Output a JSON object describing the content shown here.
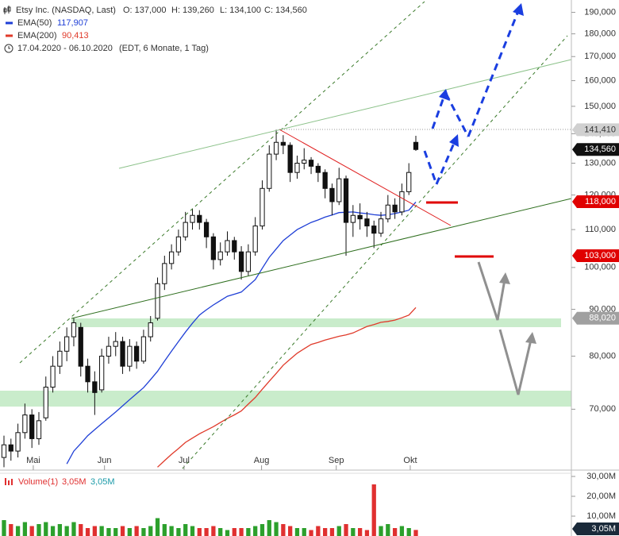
{
  "chart_data": [
    {
      "type": "candlestick",
      "log_scale": true,
      "title": "Etsy Inc. (NASDAQ, Last)",
      "quote_labels": [
        "O: 137,000",
        "H: 139,260",
        "L: 134,100",
        "C: 134,560"
      ],
      "date_range": "17.04.2020 - 06.10.2020",
      "period_note": "(EDT, 6 Monate, 1 Tag)",
      "open": [
        62000,
        64000,
        63000,
        66000,
        69000,
        65000,
        68500,
        74000,
        78000,
        81000,
        84000,
        86000,
        78000,
        75000,
        73500,
        80000,
        82000,
        83000,
        78000,
        82000,
        79000,
        84000,
        88000,
        96000,
        101000,
        104000,
        108000,
        112000,
        114000,
        112000,
        108000,
        102000,
        104000,
        107000,
        104000,
        99000,
        104000,
        111000,
        122000,
        133000,
        137000,
        136000,
        127000,
        130000,
        131000,
        129000,
        127000,
        122000,
        118000,
        125000,
        112000,
        114000,
        113000,
        111000,
        109000,
        113000,
        117000,
        115000,
        121000,
        137000
      ],
      "high": [
        65500,
        65000,
        67500,
        71000,
        70000,
        69500,
        76000,
        80000,
        83000,
        86000,
        88020,
        87000,
        79500,
        77000,
        81500,
        84000,
        85000,
        84000,
        83500,
        83000,
        85500,
        88500,
        97500,
        103000,
        106000,
        110000,
        115000,
        116000,
        115500,
        113000,
        109000,
        106500,
        109500,
        108000,
        105500,
        106000,
        113500,
        124500,
        136000,
        141410,
        139500,
        137000,
        132500,
        135000,
        132000,
        130000,
        128000,
        123500,
        128500,
        126000,
        117000,
        117500,
        115000,
        112500,
        115000,
        120000,
        119000,
        123500,
        130000,
        139260
      ],
      "low": [
        60500,
        61500,
        62000,
        65000,
        63500,
        64000,
        68000,
        73000,
        76500,
        79000,
        82000,
        76000,
        73000,
        69000,
        73000,
        78500,
        80000,
        76500,
        77000,
        77500,
        78500,
        83000,
        87500,
        94500,
        99500,
        103000,
        107000,
        110000,
        110000,
        105000,
        99500,
        100500,
        103000,
        102000,
        97000,
        98000,
        103000,
        110000,
        121000,
        131000,
        133000,
        124000,
        125000,
        128000,
        126500,
        124000,
        119000,
        114000,
        117000,
        103000,
        108000,
        110000,
        108000,
        105000,
        108000,
        112000,
        113000,
        114000,
        120000,
        134100
      ],
      "close": [
        64000,
        63000,
        66000,
        69000,
        65000,
        68000,
        74000,
        78000,
        81000,
        84000,
        87000,
        78000,
        75000,
        73000,
        80000,
        82000,
        83000,
        78000,
        82000,
        79000,
        84000,
        87000,
        96000,
        101000,
        104000,
        108000,
        112000,
        114000,
        112000,
        108000,
        102000,
        104000,
        107000,
        104000,
        99000,
        104000,
        111000,
        122000,
        133000,
        137000,
        136000,
        127000,
        130000,
        131000,
        129000,
        127000,
        122000,
        118000,
        125000,
        112000,
        114000,
        113000,
        111000,
        109000,
        113000,
        117000,
        115000,
        121000,
        127000,
        134560
      ],
      "series": [
        {
          "name": "EMA(50)",
          "color": "#1f3fd6",
          "last_label": "117,907",
          "values": [
            null,
            null,
            null,
            null,
            null,
            null,
            null,
            null,
            null,
            61000,
            63000,
            64200,
            65500,
            66500,
            67500,
            68500,
            69500,
            70600,
            71700,
            72800,
            73900,
            75400,
            77000,
            79000,
            81000,
            83000,
            85000,
            86900,
            88700,
            89900,
            91000,
            92000,
            93000,
            93500,
            94000,
            95500,
            97000,
            99800,
            102600,
            104800,
            107000,
            108500,
            110000,
            111000,
            112000,
            112700,
            113500,
            114100,
            114800,
            114900,
            115000,
            114700,
            114500,
            114200,
            114000,
            114200,
            114500,
            115000,
            115500,
            117907
          ]
        },
        {
          "name": "EMA(200)",
          "color": "#e03a2a",
          "last_label": "90,413",
          "values": [
            null,
            null,
            null,
            null,
            null,
            null,
            null,
            null,
            null,
            null,
            null,
            null,
            null,
            null,
            null,
            null,
            null,
            null,
            null,
            null,
            null,
            null,
            60500,
            61500,
            62500,
            63400,
            64400,
            65100,
            65800,
            66400,
            67000,
            67700,
            68400,
            69000,
            69700,
            70900,
            72100,
            73600,
            75100,
            76600,
            78200,
            79400,
            80600,
            81500,
            82400,
            82800,
            83300,
            83700,
            84100,
            84400,
            84800,
            85500,
            86200,
            86600,
            87100,
            87300,
            87600,
            88100,
            88700,
            90413
          ]
        }
      ],
      "up_color": "#ffffff",
      "down_color": "#111111",
      "ylim": [
        60300,
        196000
      ],
      "yticks": [
        {
          "value": 70000,
          "label": "70,000"
        },
        {
          "value": 80000,
          "label": "80,000"
        },
        {
          "value": 90000,
          "label": "90,000"
        },
        {
          "value": 100000,
          "label": "100,000"
        },
        {
          "value": 110000,
          "label": "110,000"
        },
        {
          "value": 120000,
          "label": "120,000"
        },
        {
          "value": 130000,
          "label": "130,000"
        },
        {
          "value": 140000,
          "label": "140,000"
        },
        {
          "value": 150000,
          "label": "150,000"
        },
        {
          "value": 160000,
          "label": "160,000"
        },
        {
          "value": 170000,
          "label": "170,000"
        },
        {
          "value": 180000,
          "label": "180,000"
        },
        {
          "value": 190000,
          "label": "190,000"
        }
      ],
      "xticks": [
        {
          "value": 4.2,
          "label": "Mai"
        },
        {
          "value": 14.4,
          "label": "Jun"
        },
        {
          "value": 25.8,
          "label": "Jul"
        },
        {
          "value": 36.9,
          "label": "Aug"
        },
        {
          "value": 47.6,
          "label": "Sep"
        },
        {
          "value": 58.2,
          "label": "Okt"
        }
      ],
      "price_markers": [
        {
          "value": 141410,
          "label": "141,410",
          "color": "#d0d0d0",
          "text_color": "#333333"
        },
        {
          "value": 134560,
          "label": "134,560",
          "color": "#111111",
          "text_color": "#ffffff"
        },
        {
          "value": 118000,
          "label": "118,000",
          "color": "#e00000",
          "text_color": "#ffffff"
        },
        {
          "value": 103000,
          "label": "103,000",
          "color": "#e00000",
          "text_color": "#ffffff"
        },
        {
          "value": 88020,
          "label": "88,020",
          "color": "#a0a0a0",
          "text_color": "#ffffff"
        }
      ]
    },
    {
      "type": "bar",
      "name": "Volume(1)",
      "header_labels": [
        "3,05M",
        "3,05M"
      ],
      "values": [
        8,
        6,
        5,
        7,
        5,
        6,
        7,
        5,
        6,
        5,
        7,
        6,
        4,
        5,
        5,
        4,
        4,
        5,
        4,
        5,
        4,
        5,
        9,
        6,
        5,
        4,
        6,
        5,
        4,
        4,
        5,
        4,
        3,
        4,
        4,
        4,
        5,
        6,
        8,
        7,
        6,
        5,
        4,
        4,
        3,
        5,
        4,
        4,
        5,
        6,
        4,
        4,
        3,
        26,
        5,
        6,
        4,
        5,
        4,
        3.05
      ],
      "up_color": "#2ca02c",
      "down_color": "#e03030",
      "ylim": [
        0,
        31.6
      ],
      "yticks": [
        {
          "value": 10,
          "label": "10,00M"
        },
        {
          "value": 20,
          "label": "20,00M"
        },
        {
          "value": 30,
          "label": "30,00M"
        }
      ],
      "marker": {
        "value": 3.05,
        "label": "3,05M",
        "color": "#1a2a3a",
        "text_color": "#ffffff"
      }
    }
  ]
}
